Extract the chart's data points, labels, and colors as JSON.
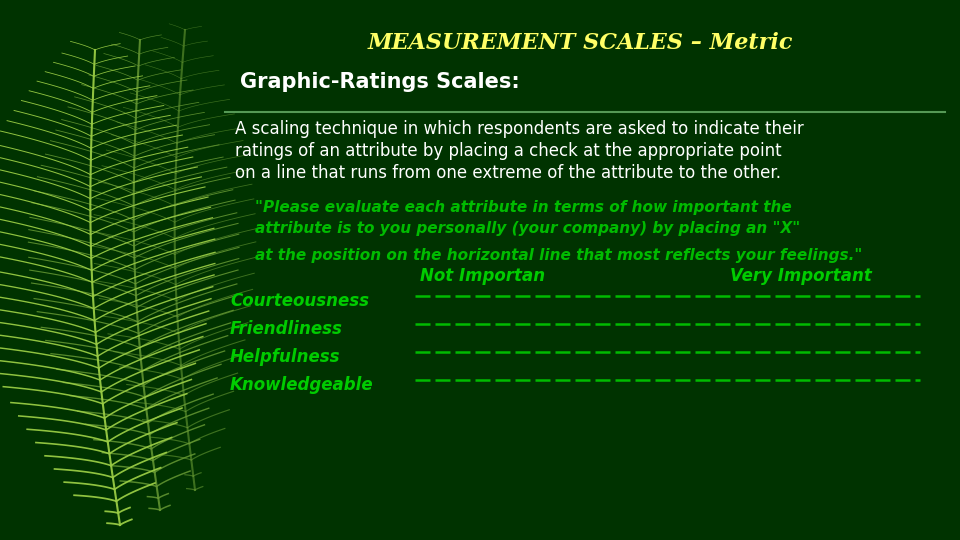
{
  "bg_color": "#003300",
  "title": "MEASUREMENT SCALES – Metric",
  "title_color": "#FFFF66",
  "title_fontsize": 16,
  "subtitle": "Graphic-Ratings Scales:",
  "subtitle_color": "#FFFFFF",
  "subtitle_fontsize": 15,
  "separator_color": "#559955",
  "body_text_lines": [
    "A scaling technique in which respondents are asked to indicate their",
    "ratings of an attribute by placing a check at the appropriate point",
    "on a line that runs from one extreme of the attribute to the other."
  ],
  "body_color": "#FFFFFF",
  "body_fontsize": 12,
  "quote_lines": [
    "\"Please evaluate each attribute in terms of how important the",
    "attribute is to you personally (your company) by placing an \"X\"",
    "at the position on the horizontal line that most reflects your feelings.\""
  ],
  "quote_color": "#00BB00",
  "quote_fontsize": 11,
  "col_not_important": "Not Importan",
  "col_very_important": "Very Important",
  "col_color": "#00CC00",
  "col_fontsize": 12,
  "attributes": [
    "Courteousness",
    "Friendliness",
    "Helpfulness",
    "Knowledgeable"
  ],
  "attr_color": "#00CC00",
  "attr_fontsize": 12,
  "line_color": "#00BB00",
  "feather1_color": "#99CC44",
  "feather2_color": "#669933"
}
